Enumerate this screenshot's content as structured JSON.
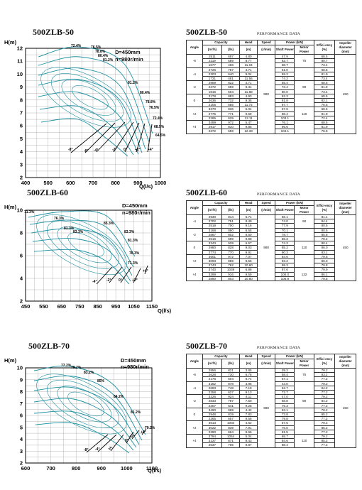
{
  "performance_label": "PERFORMANCE  DATA",
  "headers": {
    "angle": "Angle",
    "capacity": "Capacity",
    "cap_m3h": "(m³/h)",
    "cap_ls": "(l/s)",
    "head": "Head",
    "head_unit": "(m)",
    "speed": "Speed",
    "speed_unit": "(r/min)",
    "power": "Power (kW)",
    "shaft": "Shaft Power",
    "motor": "Motor Power",
    "eff": "Effici-ency (%)",
    "impeller": "Impeller diameter (mm)"
  },
  "charts": [
    {
      "model": "500ZLB-50",
      "spec_d": "D=450mm",
      "spec_n": "n=980r/min",
      "y_label": "H(m)",
      "x_label": "Q(l/s)",
      "y_ticks": [
        "2",
        "3",
        "4",
        "5",
        "6",
        "7",
        "8",
        "9",
        "10",
        "11",
        "12"
      ],
      "x_ticks": [
        "400",
        "500",
        "600",
        "700",
        "800",
        "900",
        "1000"
      ],
      "eff_labels": [
        "72.4%",
        "76.5%",
        "78.8%",
        "80.4%",
        "81.2%",
        "81.2%",
        "80.4%",
        "78.8%",
        "76.5%",
        "72.4%",
        "68.5%",
        "64.5%"
      ],
      "angle_labels": [
        "-8°",
        "-6°",
        "-4°",
        "-2°",
        "0°",
        "+2°",
        "+4°"
      ]
    },
    {
      "model": "500ZLB-60",
      "spec_d": "D=450mm",
      "spec_n": "n=980r/min",
      "y_label": "H(m)",
      "x_label": "Q(l/s)",
      "y_ticks": [
        "2",
        "4",
        "6",
        "8",
        "10"
      ],
      "x_ticks": [
        "450",
        "550",
        "650",
        "750",
        "850",
        "950",
        "1050",
        "1150"
      ],
      "eff_labels": [
        "71.3%",
        "76.3%",
        "81.3%",
        "83.3%",
        "85.3%",
        "83.3%",
        "81.3%",
        "76.3%",
        "71.3%"
      ],
      "angle_labels": [
        "-4°",
        "-2°",
        "0°",
        "+2°",
        "+4°"
      ]
    },
    {
      "model": "500ZLB-70",
      "spec_d": "D=450mm",
      "spec_n": "n=980r/min",
      "y_label": "H(m)",
      "x_label": "Q(l/s)",
      "y_ticks": [
        "2",
        "3",
        "4",
        "5",
        "6",
        "7",
        "8",
        "9",
        "10"
      ],
      "x_ticks": [
        "600",
        "700",
        "800",
        "900",
        "1000",
        "1100"
      ],
      "eff_labels": [
        "77.2%",
        "79.2%",
        "83.2%",
        "85%",
        "84.2%",
        "81.2%",
        "79.2%"
      ],
      "angle_labels": [
        "-8°",
        "-4°",
        "-2°",
        "0°",
        "+2°",
        "+4°"
      ]
    }
  ],
  "tables": [
    {
      "model": "500ZLB-50",
      "speed": "980",
      "impeller": "450",
      "groups": [
        {
          "angle": "-6",
          "motor": "75",
          "rows": [
            [
              "2511",
              "697",
              "4.80",
              "47.9",
              "68.5"
            ],
            [
              "2119",
              "589",
              "8.77",
              "62.7",
              "80.7"
            ],
            [
              "1677",
              "466",
              "11.04",
              "68.7",
              "73.4"
            ]
          ]
        },
        {
          "angle": "-4",
          "motor": "",
          "rows": [
            [
              "2726",
              "757",
              "4.71",
              "51.0",
              "68.5"
            ],
            [
              "2303",
              "640",
              "9.04",
              "69.2",
              "81.9"
            ],
            [
              "1731",
              "481",
              "11.56",
              "74.2",
              "73.4"
            ]
          ]
        },
        {
          "angle": "-2",
          "motor": "90",
          "rows": [
            [
              "2959",
              "822",
              "4.71",
              "55.4",
              "68.5"
            ],
            [
              "2372",
              "659",
              "9.31",
              "73.4",
              "81.9"
            ],
            [
              "1816",
              "504",
              "11.88",
              "80.0",
              "73.4"
            ]
          ]
        },
        {
          "angle": "0",
          "motor": "",
          "rows": [
            [
              "3178",
              "883",
              "4.93",
              "62.3",
              "68.5"
            ],
            [
              "2636",
              "732",
              "9.35",
              "81.8",
              "82.1"
            ],
            [
              "2105",
              "585",
              "11.72",
              "87.7",
              "76.5"
            ]
          ]
        },
        {
          "angle": "+2",
          "motor": "110",
          "rows": [
            [
              "3370",
              "936",
              "5.04",
              "67.6",
              "68.5"
            ],
            [
              "2775",
              "771",
              "9.59",
              "88.4",
              "81.9"
            ],
            [
              "2265",
              "629",
              "12.11",
              "103.1",
              "72.4"
            ]
          ]
        },
        {
          "angle": "+4",
          "motor": "",
          "rows": [
            [
              "3499",
              "972",
              "5.47",
              "76.1",
              "68.5"
            ],
            [
              "2917",
              "810",
              "9.85",
              "95.6",
              "81.9"
            ],
            [
              "2372",
              "659",
              "12.33",
              "104.1",
              "76.5"
            ]
          ]
        }
      ]
    },
    {
      "model": "500ZLB-60",
      "speed": "980",
      "impeller": "450",
      "groups": [
        {
          "angle": "-4",
          "motor": "90",
          "rows": [
            [
              "2930",
              "814",
              "6.71",
              "66.1",
              "81.1"
            ],
            [
              "2702",
              "751",
              "8.49",
              "74.0",
              "84.4"
            ],
            [
              "2518",
              "700",
              "9.16",
              "77.9",
              "80.5"
            ]
          ]
        },
        {
          "angle": "-2",
          "motor": "",
          "rows": [
            [
              "3168",
              "880",
              "6.55",
              "70.1",
              "80.5"
            ],
            [
              "2887",
              "802",
              "8.60",
              "78.7",
              "85.8"
            ],
            [
              "2516",
              "699",
              "9.98",
              "86.3",
              "79.2"
            ]
          ]
        },
        {
          "angle": "0",
          "motor": "110",
          "rows": [
            [
              "3343",
              "929",
              "6.57",
              "74.3",
              "80.4"
            ],
            [
              "2980",
              "828",
              "9.03",
              "85.2",
              "86.0"
            ],
            [
              "2774",
              "770",
              "9.91",
              "90.3",
              "83.1"
            ]
          ]
        },
        {
          "angle": "+2",
          "motor": "",
          "rows": [
            [
              "3501",
              "972",
              "7.07",
              "84.6",
              "79.6"
            ],
            [
              "3093",
              "859",
              "9.55",
              "93.2",
              "86.3"
            ],
            [
              "2743",
              "762",
              "10.60",
              "99.3",
              "79.8"
            ]
          ]
        },
        {
          "angle": "+4",
          "motor": "132",
          "rows": [
            [
              "3740",
              "1039",
              "6.88",
              "87.6",
              "79.9"
            ],
            [
              "3299",
              "916",
              "9.59",
              "100.0",
              "86.1"
            ],
            [
              "2890",
              "803",
              "10.80",
              "106.9",
              "79.5"
            ]
          ]
        }
      ]
    },
    {
      "model": "500ZLB-70",
      "speed": "980",
      "impeller": "450",
      "groups": [
        {
          "angle": "-6",
          "motor": "75",
          "rows": [
            [
              "2956",
              "821",
              "3.85",
              "39.2",
              "79.2"
            ],
            [
              "2628",
              "730",
              "6.78",
              "58.4",
              "83.2"
            ],
            [
              "2176",
              "604",
              "8.74",
              "67.1",
              "77.2"
            ]
          ]
        },
        {
          "angle": "-4",
          "motor": "",
          "rows": [
            [
              "3162",
              "878",
              "3.96",
              "43.0",
              "79.2"
            ],
            [
              "2693",
              "748",
              "7.19",
              "62.7",
              "84.2"
            ],
            [
              "2258",
              "627",
              "9.13",
              "72.7",
              "77.2"
            ]
          ]
        },
        {
          "angle": "-2",
          "motor": "90",
          "rows": [
            [
              "3326",
              "924",
              "4.11",
              "47.0",
              "79.2"
            ],
            [
              "2833",
              "787",
              "7.50",
              "68.8",
              "84.2"
            ],
            [
              "2307",
              "641",
              "9.25",
              "75.3",
              "77.2"
            ]
          ]
        },
        {
          "angle": "0",
          "motor": "",
          "rows": [
            [
              "3490",
              "969",
              "4.42",
              "53.1",
              "79.2"
            ],
            [
              "2948",
              "819",
              "7.83",
              "73.8",
              "85.2"
            ],
            [
              "2365",
              "657",
              "9.56",
              "79.8",
              "77.2"
            ]
          ]
        },
        {
          "angle": "+2",
          "motor": "",
          "rows": [
            [
              "3613",
              "1004",
              "4.62",
              "57.5",
              "79.2"
            ],
            [
              "3022",
              "839",
              "7.91",
              "76.0",
              "85.2"
            ],
            [
              "2390",
              "664",
              "9.66",
              "81.5",
              "77.2"
            ]
          ]
        },
        {
          "angle": "+4",
          "motor": "110",
          "rows": [
            [
              "3794",
              "1054",
              "5.04",
              "65.7",
              "79.2"
            ],
            [
              "3137",
              "871",
              "8.43",
              "84.6",
              "85.2"
            ],
            [
              "2537",
              "705",
              "9.87",
              "88.4",
              "77.2"
            ]
          ]
        }
      ]
    }
  ]
}
